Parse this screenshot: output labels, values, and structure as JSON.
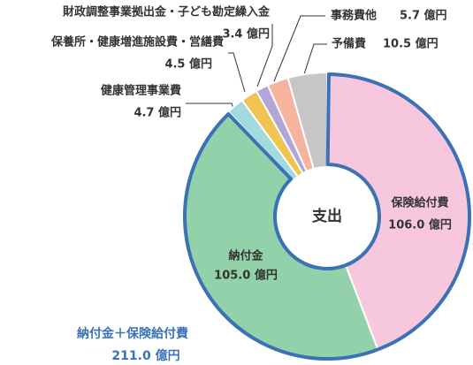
{
  "chart_data": {
    "type": "donut",
    "center_label": "支出",
    "categories": [
      "保険給付費",
      "納付金",
      "健康管理事業費",
      "保養所・健康増進施設費・営繕費",
      "財政調整事業拠出金・子ども勘定繰入金",
      "事務費他",
      "予備費"
    ],
    "values": [
      106.0,
      105.0,
      4.7,
      4.5,
      3.4,
      5.7,
      10.5
    ],
    "value_labels": [
      "106.0 億円",
      "105.0 億円",
      "4.7 億円",
      "4.5 億円",
      "3.4 億円",
      "5.7 億円",
      "10.5 億円"
    ],
    "colors": [
      "#f7c8dd",
      "#92d1a9",
      "#a3dadd",
      "#efc450",
      "#b3a6d6",
      "#f6b39d",
      "#c6c6c6"
    ],
    "annotation": {
      "text": "納付金＋保険給付費",
      "value_label": "211.0 億円"
    }
  }
}
